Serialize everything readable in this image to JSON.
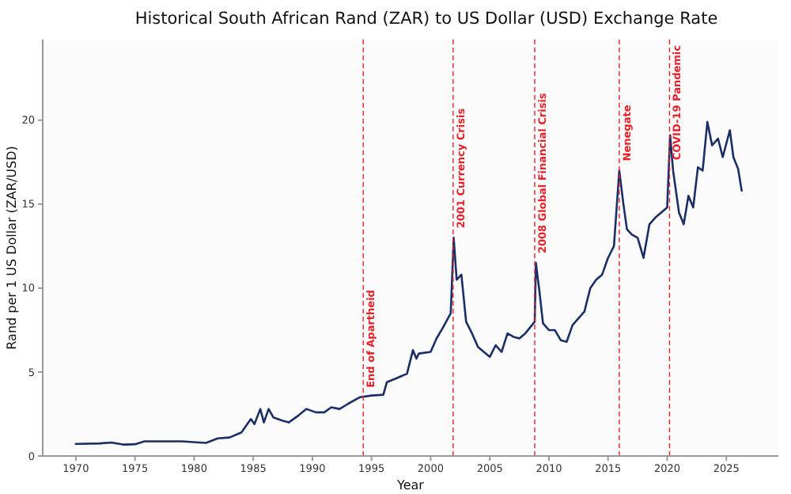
{
  "chart_data": {
    "type": "line",
    "title": "Historical South African Rand (ZAR) to US Dollar (USD) Exchange Rate",
    "xlabel": "Year",
    "ylabel": "Rand per 1 US Dollar (ZAR/USD)",
    "xlim": [
      1967.2,
      2029.4
    ],
    "xticks": [
      1970,
      1975,
      1980,
      1985,
      1990,
      1995,
      2000,
      2005,
      2010,
      2015,
      2020,
      2025
    ],
    "ylim": [
      0,
      24.8
    ],
    "yticks": [
      0,
      5,
      10,
      15,
      20
    ],
    "x": [
      1970,
      1972,
      1973,
      1974,
      1975,
      1975.8,
      1979,
      1981,
      1982,
      1983,
      1984,
      1984.8,
      1985.1,
      1985.6,
      1985.9,
      1986.3,
      1986.7,
      1987.5,
      1988,
      1988.8,
      1989.5,
      1990.3,
      1991,
      1991.6,
      1992.3,
      1993,
      1994,
      1995,
      1996,
      1996.3,
      1997,
      1998,
      1998.5,
      1998.8,
      1999,
      2000,
      2000.5,
      2001,
      2001.7,
      2001.95,
      2002.2,
      2002.6,
      2003,
      2003.5,
      2004,
      2004.5,
      2005,
      2005.5,
      2006,
      2006.5,
      2007,
      2007.5,
      2008,
      2008.8,
      2008.9,
      2009.2,
      2009.5,
      2010,
      2010.5,
      2011,
      2011.5,
      2012,
      2012.5,
      2013,
      2013.5,
      2014,
      2014.5,
      2015,
      2015.5,
      2015.95,
      2016.3,
      2016.6,
      2017,
      2017.5,
      2018,
      2018.5,
      2019,
      2019.5,
      2020,
      2020.25,
      2020.5,
      2021,
      2021.4,
      2021.8,
      2022.2,
      2022.6,
      2023,
      2023.4,
      2023.8,
      2024.3,
      2024.7,
      2025.3,
      2025.6,
      2026,
      2026.3
    ],
    "series": [
      {
        "color": "#1b2f66",
        "values": [
          0.72,
          0.75,
          0.8,
          0.68,
          0.7,
          0.87,
          0.87,
          0.78,
          1.05,
          1.1,
          1.4,
          2.2,
          1.9,
          2.8,
          2.0,
          2.8,
          2.3,
          2.1,
          2.0,
          2.4,
          2.8,
          2.6,
          2.6,
          2.9,
          2.8,
          3.1,
          3.5,
          3.6,
          3.65,
          4.4,
          4.6,
          4.9,
          6.3,
          5.8,
          6.1,
          6.2,
          7.0,
          7.6,
          8.5,
          13.0,
          10.5,
          10.8,
          8.0,
          7.3,
          6.5,
          6.2,
          5.9,
          6.6,
          6.2,
          7.3,
          7.1,
          7.0,
          7.3,
          8.0,
          11.5,
          9.8,
          7.9,
          7.5,
          7.5,
          6.9,
          6.8,
          7.8,
          8.2,
          8.6,
          10.0,
          10.5,
          10.8,
          11.8,
          12.5,
          17.0,
          15.0,
          13.5,
          13.2,
          13.0,
          11.8,
          13.8,
          14.2,
          14.5,
          14.8,
          19.1,
          17.0,
          14.5,
          13.8,
          15.5,
          14.8,
          17.2,
          17.0,
          19.9,
          18.5,
          18.9,
          17.8,
          19.4,
          17.8,
          17.1,
          15.8
        ]
      }
    ],
    "ref_lines": [
      {
        "axis": "x",
        "value": 1994.3,
        "label": "End of Apartheid",
        "color": "#e8202a",
        "line_style": "dashed"
      },
      {
        "axis": "x",
        "value": 2001.9,
        "label": "2001 Currency Crisis",
        "color": "#e8202a",
        "line_style": "dashed"
      },
      {
        "axis": "x",
        "value": 2008.8,
        "label": "2008 Global Financial Crisis",
        "color": "#e8202a",
        "line_style": "dashed"
      },
      {
        "axis": "x",
        "value": 2015.95,
        "label": "Nenegate",
        "color": "#e8202a",
        "line_style": "dashed"
      },
      {
        "axis": "x",
        "value": 2020.2,
        "label": "COVID-19 Pandemic",
        "color": "#e8202a",
        "line_style": "dashed"
      }
    ]
  }
}
